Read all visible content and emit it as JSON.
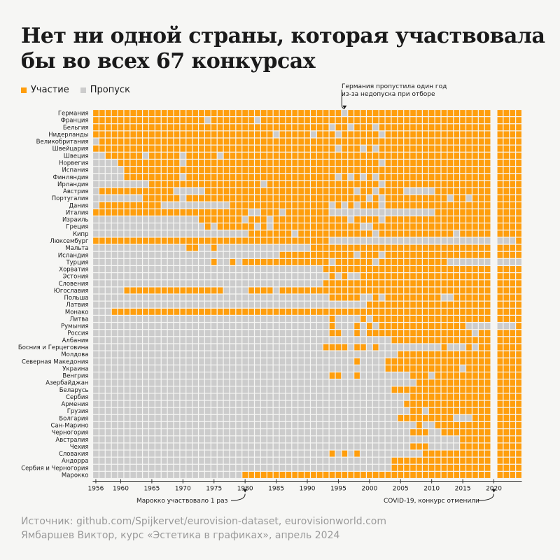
{
  "title": "Нет ни одной страны, которая участвовала бы во всех 67 конкурсах",
  "legend": {
    "participation": "Участие",
    "skip": "Пропуск"
  },
  "colors": {
    "participation": "#ff9e0d",
    "skip": "#cccccc",
    "background": "#f6f6f4"
  },
  "source": {
    "line1": "Источник: github.com/Spijkervet/eurovision-dataset, eurovisionworld.com",
    "line2": "Ямбаршев Виктор, курс «Эстетика в графиках», апрель 2024"
  },
  "chart_data": {
    "type": "heatmap",
    "title": "Нет ни одной страны, которая участвовала бы во всех 67 конкурсах",
    "x_label": "",
    "y_label": "",
    "start_year": 1956,
    "end_year": 2024,
    "x_ticks": [
      1956,
      1960,
      1965,
      1970,
      1975,
      1980,
      1985,
      1990,
      1995,
      2000,
      2005,
      2010,
      2015,
      2020
    ],
    "cancelled_year": 2020,
    "legend": [
      {
        "label": "Участие",
        "value": 1
      },
      {
        "label": "Пропуск",
        "value": 0
      }
    ],
    "countries": [
      {
        "name": "Германия",
        "first": 1956,
        "missed": [
          1996
        ]
      },
      {
        "name": "Франция",
        "first": 1956,
        "missed": [
          1974,
          1982
        ]
      },
      {
        "name": "Бельгия",
        "first": 1956,
        "missed": [
          1994,
          1997,
          2001
        ]
      },
      {
        "name": "Нидерланды",
        "first": 1956,
        "missed": [
          1985,
          1991,
          1995,
          2002
        ]
      },
      {
        "name": "Великобритания",
        "first": 1957,
        "missed": []
      },
      {
        "name": "Швейцария",
        "first": 1956,
        "missed": [
          1995,
          1999,
          2001
        ]
      },
      {
        "name": "Швеция",
        "first": 1958,
        "missed": [
          1964,
          1970,
          1976
        ]
      },
      {
        "name": "Норвегия",
        "first": 1960,
        "missed": [
          1970,
          2002
        ]
      },
      {
        "name": "Испания",
        "first": 1961,
        "missed": []
      },
      {
        "name": "Финляндия",
        "first": 1961,
        "missed": [
          1970,
          1995,
          1997,
          1999,
          2001
        ]
      },
      {
        "name": "Ирландия",
        "first": 1965,
        "missed": [
          1983,
          2002
        ]
      },
      {
        "name": "Австрия",
        "first": 1957,
        "missed": [
          1969,
          1970,
          1971,
          1972,
          1973,
          1998,
          2001,
          2006,
          2007,
          2008,
          2009,
          2010
        ]
      },
      {
        "name": "Португалия",
        "first": 1964,
        "missed": [
          1970,
          2000,
          2002,
          2013,
          2016
        ]
      },
      {
        "name": "Дания",
        "first": 1957,
        "missed": [
          1967,
          1968,
          1969,
          1970,
          1971,
          1972,
          1973,
          1974,
          1975,
          1976,
          1977,
          1994,
          1996,
          1998,
          2002
        ]
      },
      {
        "name": "Италия",
        "first": 1956,
        "missed": [
          1981,
          1982,
          1986,
          1994,
          1995,
          1996,
          1997,
          1998,
          1999,
          2000,
          2001,
          2002,
          2003,
          2004,
          2005,
          2006,
          2007,
          2008,
          2009,
          2010
        ]
      },
      {
        "name": "Израиль",
        "first": 1973,
        "missed": [
          1980,
          1984,
          1997,
          2002
        ]
      },
      {
        "name": "Греция",
        "first": 1974,
        "missed": [
          1975,
          1982,
          1984,
          1999,
          2000
        ]
      },
      {
        "name": "Кипр",
        "first": 1981,
        "missed": [
          1988,
          2001,
          2014
        ]
      },
      {
        "name": "Люксембург",
        "first": 1956,
        "missed": [
          1994,
          1995,
          1996,
          1997,
          1998,
          1999,
          2000,
          2001,
          2002,
          2003,
          2004,
          2005,
          2006,
          2007,
          2008,
          2009,
          2010,
          2011,
          2012,
          2013,
          2014,
          2015,
          2016,
          2017,
          2018,
          2019,
          2020,
          2021,
          2022,
          2023
        ]
      },
      {
        "name": "Мальта",
        "first": 1971,
        "missed": [
          1973,
          1974,
          1976,
          1977,
          1978,
          1979,
          1980,
          1981,
          1982,
          1983,
          1984,
          1985,
          1986,
          1987,
          1988,
          1989,
          1990
        ]
      },
      {
        "name": "Исландия",
        "first": 1986,
        "missed": [
          1998,
          2002
        ]
      },
      {
        "name": "Турция",
        "first": 1975,
        "missed": [
          1976,
          1977,
          1979,
          1994,
          2001,
          2013,
          2014,
          2015,
          2016,
          2017,
          2018,
          2019,
          2020,
          2021,
          2022,
          2023,
          2024
        ]
      },
      {
        "name": "Хорватия",
        "first": 1993,
        "missed": []
      },
      {
        "name": "Эстония",
        "first": 1994,
        "missed": [
          1995,
          1997,
          1998
        ]
      },
      {
        "name": "Словения",
        "first": 1993,
        "missed": []
      },
      {
        "name": "Югославия",
        "first": 1961,
        "missed": [
          1977,
          1978,
          1979,
          1980,
          1985
        ]
      },
      {
        "name": "Польша",
        "first": 1994,
        "missed": [
          1999,
          2000,
          2002,
          2012,
          2013
        ]
      },
      {
        "name": "Латвия",
        "first": 2000,
        "missed": []
      },
      {
        "name": "Монако",
        "first": 1959,
        "missed": []
      },
      {
        "name": "Литва",
        "first": 1994,
        "missed": [
          1995,
          1996,
          1997,
          1998,
          2000
        ]
      },
      {
        "name": "Румыния",
        "first": 1994,
        "missed": [
          1995,
          1996,
          1997,
          1999,
          2001,
          2016,
          2017,
          2018,
          2019,
          2020,
          2021,
          2022,
          2023
        ]
      },
      {
        "name": "Россия",
        "first": 1994,
        "missed": [
          1996,
          1997,
          1999,
          2017
        ]
      },
      {
        "name": "Албания",
        "first": 2004,
        "missed": []
      },
      {
        "name": "Босния и Герцеговина",
        "first": 1993,
        "missed": [
          1997,
          2000,
          2002,
          2003,
          2004,
          2005,
          2006,
          2007,
          2008,
          2009,
          2010,
          2011,
          2013,
          2014,
          2015,
          2017
        ]
      },
      {
        "name": "Молдова",
        "first": 2005,
        "missed": []
      },
      {
        "name": "Северная Македония",
        "first": 1998,
        "missed": [
          1999,
          2000,
          2001,
          2002
        ]
      },
      {
        "name": "Украина",
        "first": 2003,
        "missed": [
          2015
        ]
      },
      {
        "name": "Венгрия",
        "first": 1994,
        "missed": [
          1996,
          1997,
          1999,
          2000,
          2001,
          2002,
          2003,
          2004,
          2005,
          2006,
          2010
        ]
      },
      {
        "name": "Азербайджан",
        "first": 2008,
        "missed": []
      },
      {
        "name": "Беларусь",
        "first": 2004,
        "missed": []
      },
      {
        "name": "Сербия",
        "first": 2007,
        "missed": []
      },
      {
        "name": "Армения",
        "first": 2006,
        "missed": []
      },
      {
        "name": "Грузия",
        "first": 2007,
        "missed": [
          2009
        ]
      },
      {
        "name": "Болгария",
        "first": 2005,
        "missed": [
          2014,
          2015,
          2016
        ]
      },
      {
        "name": "Сан-Марино",
        "first": 2008,
        "missed": [
          2009,
          2010
        ]
      },
      {
        "name": "Черногория",
        "first": 2007,
        "missed": [
          2010,
          2011
        ]
      },
      {
        "name": "Австралия",
        "first": 2015,
        "missed": []
      },
      {
        "name": "Чехия",
        "first": 2007,
        "missed": [
          2010,
          2011,
          2012,
          2013,
          2014
        ]
      },
      {
        "name": "Словакия",
        "first": 1994,
        "missed": [
          1995,
          1997,
          1999,
          2000,
          2001,
          2002,
          2003,
          2004,
          2005,
          2006,
          2007,
          2008
        ]
      },
      {
        "name": "Андорра",
        "first": 2004,
        "missed": []
      },
      {
        "name": "Сербия и Черногория",
        "first": 2004,
        "missed": []
      },
      {
        "name": "Марокко",
        "first": 1980,
        "missed": []
      }
    ],
    "annotations": [
      {
        "text": "Германия пропустила один год из-за недопуска при отборе",
        "year": 1996,
        "country": "Германия"
      },
      {
        "text": "Марокко участвовало 1 раз",
        "year": 1980,
        "country": "Марокко"
      },
      {
        "text": "COVID-19, конкурс отменили",
        "year": 2020
      }
    ]
  }
}
